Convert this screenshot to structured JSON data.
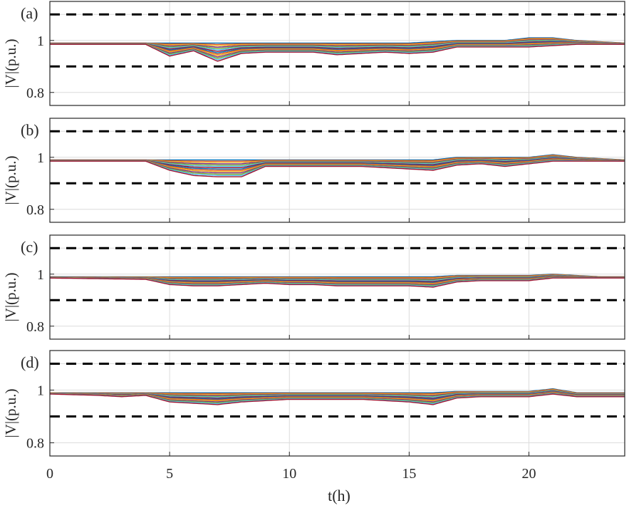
{
  "figure": {
    "xlabel": "t(h)",
    "x_ticks": [
      "0",
      "5",
      "10",
      "15",
      "20"
    ],
    "y_ticks": [
      "0.8",
      "1"
    ]
  },
  "colors": {
    "axis": "#262626",
    "grid": "#dcdcdc",
    "limit": "#000000",
    "series": [
      "#0072BD",
      "#D95319",
      "#EDB120",
      "#7E2F8E",
      "#77AC30",
      "#4DBEEE",
      "#A2142F"
    ]
  },
  "chart_data": [
    {
      "type": "line",
      "panel_label": "(a)",
      "ylabel": "|V|(p.u.)",
      "xlim": [
        0,
        24
      ],
      "ylim": [
        0.75,
        1.15
      ],
      "x_ticks": [
        0,
        5,
        10,
        15,
        20
      ],
      "y_ticks": [
        0.8,
        1
      ],
      "grid": true,
      "limit_lines": [
        1.1,
        0.9
      ],
      "x": [
        0,
        4,
        5,
        6,
        7,
        8,
        9,
        10,
        11,
        12,
        13,
        14,
        15,
        16,
        17,
        18,
        19,
        20,
        21,
        22,
        23,
        24
      ],
      "envelope_min": [
        0.985,
        0.985,
        0.94,
        0.96,
        0.92,
        0.95,
        0.955,
        0.955,
        0.955,
        0.945,
        0.95,
        0.955,
        0.95,
        0.955,
        0.975,
        0.975,
        0.975,
        0.975,
        0.98,
        0.985,
        0.985,
        0.985
      ],
      "envelope_max": [
        0.99,
        0.99,
        0.99,
        0.99,
        0.99,
        0.99,
        0.99,
        0.99,
        0.99,
        0.99,
        0.99,
        0.99,
        0.99,
        0.995,
        1.0,
        1.0,
        1.0,
        1.01,
        1.01,
        1.0,
        0.995,
        0.99
      ]
    },
    {
      "type": "line",
      "panel_label": "(b)",
      "ylabel": "|V|(p.u.)",
      "xlim": [
        0,
        24
      ],
      "ylim": [
        0.75,
        1.15
      ],
      "x_ticks": [
        0,
        5,
        10,
        15,
        20
      ],
      "y_ticks": [
        0.8,
        1
      ],
      "grid": true,
      "limit_lines": [
        1.1,
        0.9
      ],
      "x": [
        0,
        4,
        5,
        6,
        7,
        8,
        9,
        10,
        11,
        12,
        13,
        14,
        15,
        16,
        17,
        18,
        19,
        20,
        21,
        22,
        23,
        24
      ],
      "envelope_min": [
        0.985,
        0.985,
        0.95,
        0.93,
        0.925,
        0.925,
        0.965,
        0.965,
        0.965,
        0.965,
        0.965,
        0.96,
        0.955,
        0.95,
        0.97,
        0.975,
        0.965,
        0.975,
        0.985,
        0.985,
        0.985,
        0.985
      ],
      "envelope_max": [
        0.99,
        0.99,
        0.99,
        0.99,
        0.99,
        0.99,
        0.99,
        0.99,
        0.99,
        0.99,
        0.99,
        0.99,
        0.99,
        0.99,
        1.0,
        1.0,
        1.0,
        1.0,
        1.01,
        1.0,
        0.995,
        0.99
      ]
    },
    {
      "type": "line",
      "panel_label": "(c)",
      "ylabel": "|V|(p.u.)",
      "xlim": [
        0,
        24
      ],
      "ylim": [
        0.75,
        1.15
      ],
      "x_ticks": [
        0,
        5,
        10,
        15,
        20
      ],
      "y_ticks": [
        0.8,
        1
      ],
      "grid": true,
      "limit_lines": [
        1.1,
        0.9
      ],
      "x": [
        0,
        4,
        5,
        6,
        7,
        8,
        9,
        10,
        11,
        12,
        13,
        14,
        15,
        16,
        17,
        18,
        19,
        20,
        21,
        22,
        23,
        24
      ],
      "envelope_min": [
        0.985,
        0.98,
        0.96,
        0.955,
        0.955,
        0.96,
        0.965,
        0.96,
        0.96,
        0.955,
        0.955,
        0.955,
        0.955,
        0.95,
        0.97,
        0.975,
        0.975,
        0.975,
        0.985,
        0.985,
        0.985,
        0.985
      ],
      "envelope_max": [
        0.99,
        0.99,
        0.99,
        0.99,
        0.99,
        0.99,
        0.99,
        0.99,
        0.99,
        0.99,
        0.99,
        0.99,
        0.99,
        0.99,
        0.995,
        0.995,
        0.995,
        0.995,
        1.0,
        0.995,
        0.99,
        0.99
      ]
    },
    {
      "type": "line",
      "panel_label": "(d)",
      "ylabel": "|V|(p.u.)",
      "xlim": [
        0,
        24
      ],
      "ylim": [
        0.75,
        1.15
      ],
      "x_ticks": [
        0,
        5,
        10,
        15,
        20
      ],
      "y_ticks": [
        0.8,
        1
      ],
      "grid": true,
      "limit_lines": [
        1.1,
        0.9
      ],
      "x": [
        0,
        2,
        3,
        4,
        5,
        6,
        7,
        8,
        9,
        10,
        11,
        12,
        13,
        14,
        15,
        16,
        17,
        18,
        19,
        20,
        21,
        22,
        23,
        24
      ],
      "envelope_min": [
        0.985,
        0.98,
        0.975,
        0.98,
        0.955,
        0.95,
        0.945,
        0.955,
        0.96,
        0.965,
        0.965,
        0.965,
        0.965,
        0.96,
        0.955,
        0.945,
        0.97,
        0.975,
        0.975,
        0.975,
        0.985,
        0.975,
        0.975,
        0.975
      ],
      "envelope_max": [
        0.99,
        0.99,
        0.99,
        0.99,
        0.99,
        0.99,
        0.99,
        0.99,
        0.99,
        0.99,
        0.99,
        0.99,
        0.99,
        0.99,
        0.99,
        0.99,
        0.995,
        0.995,
        0.995,
        0.995,
        1.005,
        0.99,
        0.99,
        0.99
      ]
    }
  ]
}
